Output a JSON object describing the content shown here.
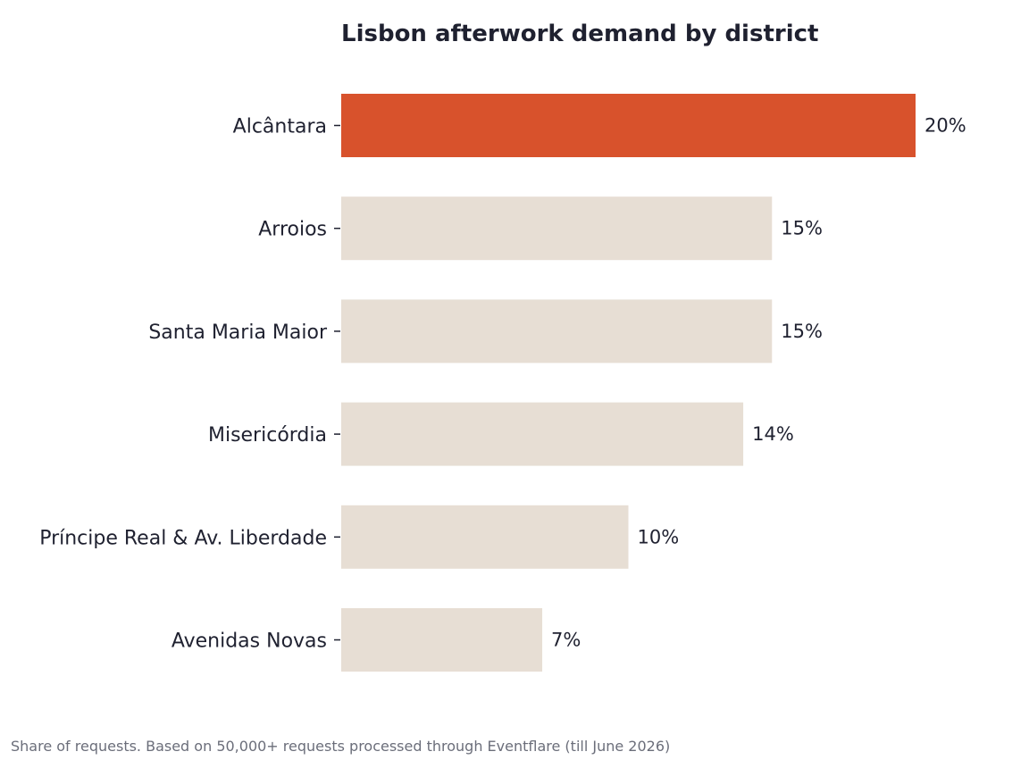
{
  "chart_data": {
    "type": "bar",
    "orientation": "horizontal",
    "title": "Lisbon afterwork demand by district",
    "categories": [
      "Alcântara",
      "Arroios",
      "Santa Maria Maior",
      "Misericórdia",
      "Príncipe Real & Av. Liberdade",
      "Avenidas Novas"
    ],
    "values": [
      20,
      15,
      15,
      14,
      10,
      7
    ],
    "value_labels": [
      "20%",
      "15%",
      "15%",
      "14%",
      "10%",
      "7%"
    ],
    "xlim": [
      0,
      20
    ],
    "xlabel": "",
    "ylabel": "",
    "grid": false,
    "legend": "none",
    "highlight_index": 0,
    "colors": {
      "highlight": "#d8522c",
      "default": "#e7ded4",
      "text": "#1f2130",
      "footnote": "#6b6e7a"
    }
  },
  "footnote": "Share of requests. Based on 50,000+ requests processed through Eventflare (till June 2026)"
}
